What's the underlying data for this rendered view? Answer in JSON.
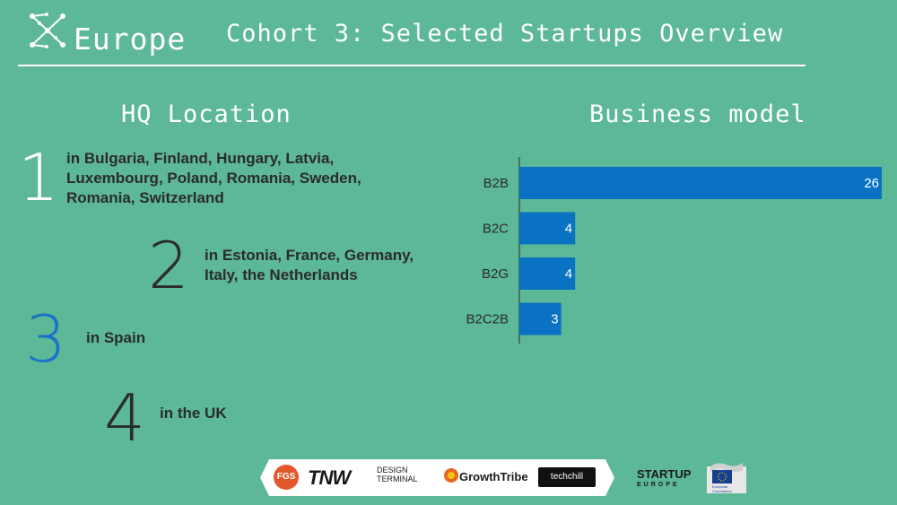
{
  "header": {
    "logo_text": "Europe",
    "title": "Cohort 3: Selected Startups Overview"
  },
  "hq": {
    "title": "HQ Location",
    "groups": [
      {
        "count": "1",
        "lines": [
          "in Bulgaria, Finland, Hungary, Latvia,",
          "Luxembourg, Poland, Romania, Sweden,",
          "Romania, Switzerland"
        ],
        "color": "#ffffff"
      },
      {
        "count": "2",
        "lines": [
          "in Estonia, France, Germany,",
          "Italy, the Netherlands"
        ],
        "color": "#2b2b2b"
      },
      {
        "count": "3",
        "lines": [
          "in Spain"
        ],
        "color": "#1a73c7"
      },
      {
        "count": "4",
        "lines": [
          "in the UK"
        ],
        "color": "#2b2b2b"
      }
    ]
  },
  "business_model": {
    "title": "Business model"
  },
  "chart_data": {
    "type": "bar",
    "orientation": "horizontal",
    "categories": [
      "B2B",
      "B2C",
      "B2G",
      "B2C2B"
    ],
    "values": [
      26,
      4,
      4,
      3
    ],
    "title": "Business model",
    "xlim": [
      0,
      26
    ],
    "bar_color": "#0a72c2",
    "data_labels": true,
    "grid": false
  },
  "footer": {
    "sponsors": [
      "FGS",
      "TNW",
      "DESIGN TERMINAL",
      "GrowthTribe",
      "techchill"
    ],
    "startup_europe": [
      "STARTUP",
      "EUROPE"
    ],
    "eu_text": "European Commission"
  },
  "colors": {
    "background": "#5cb897",
    "text_dark": "#2b2b2b",
    "accent_blue": "#1a73c7"
  }
}
